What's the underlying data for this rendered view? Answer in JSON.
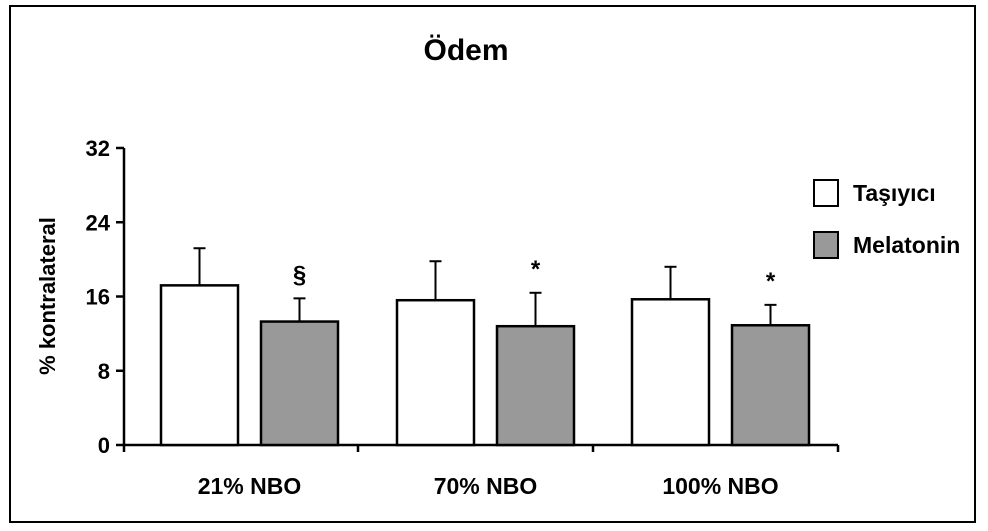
{
  "chart_data": {
    "type": "bar",
    "title": "Ödem",
    "ylabel": "% kontralateral",
    "xlabel": "",
    "ylim": [
      0,
      32
    ],
    "yticks": [
      "0",
      "8",
      "16",
      "24",
      "32"
    ],
    "yticks_values": [
      0,
      8,
      16,
      24,
      32
    ],
    "categories": [
      "21% NBO",
      "70% NBO",
      "100% NBO"
    ],
    "series": [
      {
        "name": "Taşıyıcı",
        "color": "#ffffff",
        "values": [
          17.2,
          15.6,
          15.7
        ],
        "errors": [
          4.0,
          4.2,
          3.5
        ]
      },
      {
        "name": "Melatonin",
        "color": "#999999",
        "values": [
          13.3,
          12.8,
          12.9
        ],
        "errors": [
          2.5,
          3.6,
          2.2
        ]
      }
    ],
    "annotations": [
      {
        "category": 0,
        "series": 1,
        "text": "§"
      },
      {
        "category": 1,
        "series": 1,
        "text": "*"
      },
      {
        "category": 2,
        "series": 1,
        "text": "*"
      }
    ],
    "legend_position": "right",
    "grid": false
  }
}
